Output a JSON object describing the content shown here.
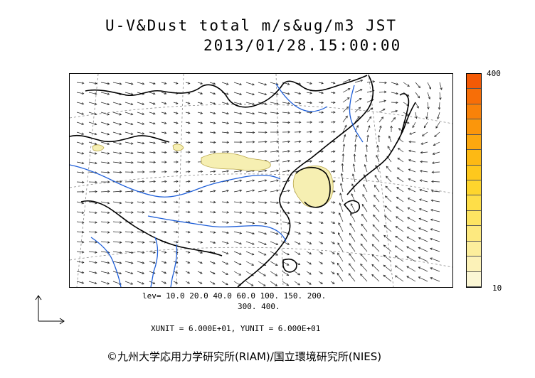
{
  "title": {
    "line1": "U-V&Dust total m/s&ug/m3 JST",
    "line2": "2013/01/28.15:00:00"
  },
  "colorbar": {
    "max_label": "400",
    "min_label": "10",
    "colors": [
      "#fbf6d4",
      "#fcf2b8",
      "#fcee9c",
      "#fde97f",
      "#fde462",
      "#fede48",
      "#fed52d",
      "#fec81d",
      "#fdb914",
      "#fca80f",
      "#fb960b",
      "#f98209",
      "#f76e07",
      "#f45a05"
    ]
  },
  "levels": {
    "line1": "lev= 10.0 20.0 40.0 60.0 100. 150. 200.",
    "line2": "300. 400."
  },
  "units": "XUNIT = 6.000E+01, YUNIT = 6.000E+01",
  "credit": "©九州大学応用力学研究所(RIAM)/国立環境研究所(NIES)",
  "colors": {
    "coast": "#000000",
    "river": "#1f5fd8",
    "dust": "#f6efb2",
    "arrow": "#222222",
    "grid": "#8a8a8a"
  }
}
